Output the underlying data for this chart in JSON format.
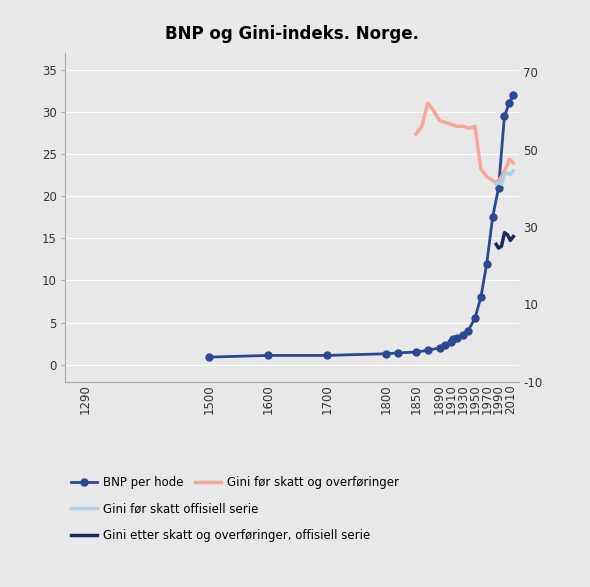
{
  "title": "BNP og Gini-indeks. Norge.",
  "background_color": "#e8e8e8",
  "plot_background_color": "#e8e8e8",
  "bnp_x": [
    1500,
    1600,
    1700,
    1800,
    1820,
    1850,
    1870,
    1890,
    1900,
    1910,
    1913,
    1920,
    1930,
    1938,
    1950,
    1960,
    1970,
    1980,
    1990,
    2000,
    2008,
    2015
  ],
  "bnp_y": [
    0.9,
    1.1,
    1.1,
    1.3,
    1.4,
    1.5,
    1.7,
    2.0,
    2.3,
    2.7,
    3.0,
    3.2,
    3.5,
    4.0,
    5.5,
    8.0,
    12.0,
    17.5,
    21.0,
    29.5,
    31.0,
    32.0
  ],
  "gini_market_x": [
    1850,
    1860,
    1870,
    1880,
    1890,
    1900,
    1910,
    1920,
    1930,
    1940,
    1950,
    1960,
    1965,
    1970,
    1975,
    1980,
    1985,
    1990,
    1995,
    2000,
    2005,
    2008,
    2012,
    2015
  ],
  "gini_market_y": [
    54.0,
    56.0,
    62.0,
    60.0,
    57.5,
    57.0,
    56.5,
    56.0,
    56.0,
    55.5,
    56.0,
    45.0,
    44.0,
    43.0,
    42.5,
    42.0,
    41.5,
    42.0,
    43.0,
    44.5,
    46.0,
    47.5,
    47.0,
    46.5
  ],
  "gini_before_tax_x": [
    1986,
    1990,
    1995,
    2000,
    2005,
    2010,
    2015
  ],
  "gini_before_tax_y": [
    41.0,
    41.5,
    41.0,
    43.5,
    44.0,
    43.5,
    44.5
  ],
  "gini_after_tax_x": [
    1986,
    1990,
    1995,
    2000,
    2005,
    2010,
    2015
  ],
  "gini_after_tax_y": [
    25.5,
    24.5,
    25.0,
    28.5,
    28.0,
    26.5,
    27.5
  ],
  "bnp_color": "#2b4990",
  "gini_market_color": "#f4a89a",
  "gini_before_tax_color": "#b0cfe8",
  "gini_after_tax_color": "#1a2a5e",
  "xticks": [
    1290,
    1500,
    1600,
    1700,
    1800,
    1850,
    1890,
    1910,
    1930,
    1950,
    1970,
    1990,
    2010
  ],
  "xlim": [
    1255,
    2025
  ],
  "ylim_left": [
    -2,
    37
  ],
  "ylim_right": [
    -10,
    75
  ],
  "yticks_left": [
    0,
    5,
    10,
    15,
    20,
    25,
    30,
    35
  ],
  "yticks_right": [
    -10,
    10,
    30,
    50,
    70
  ],
  "legend_row1": [
    {
      "label": "BNP per hode",
      "color": "#2b4990",
      "marker": true,
      "lw": 2.0
    },
    {
      "label": "Gini før skatt og overføringer",
      "color": "#f4a89a",
      "marker": false,
      "lw": 2.5
    }
  ],
  "legend_row2": [
    {
      "label": "Gini før skatt offisiell serie",
      "color": "#b0cfe8",
      "marker": false,
      "lw": 2.5
    }
  ],
  "legend_row3": [
    {
      "label": "Gini etter skatt og overføringer, offisiell serie",
      "color": "#1a2a5e",
      "marker": false,
      "lw": 2.5
    }
  ]
}
